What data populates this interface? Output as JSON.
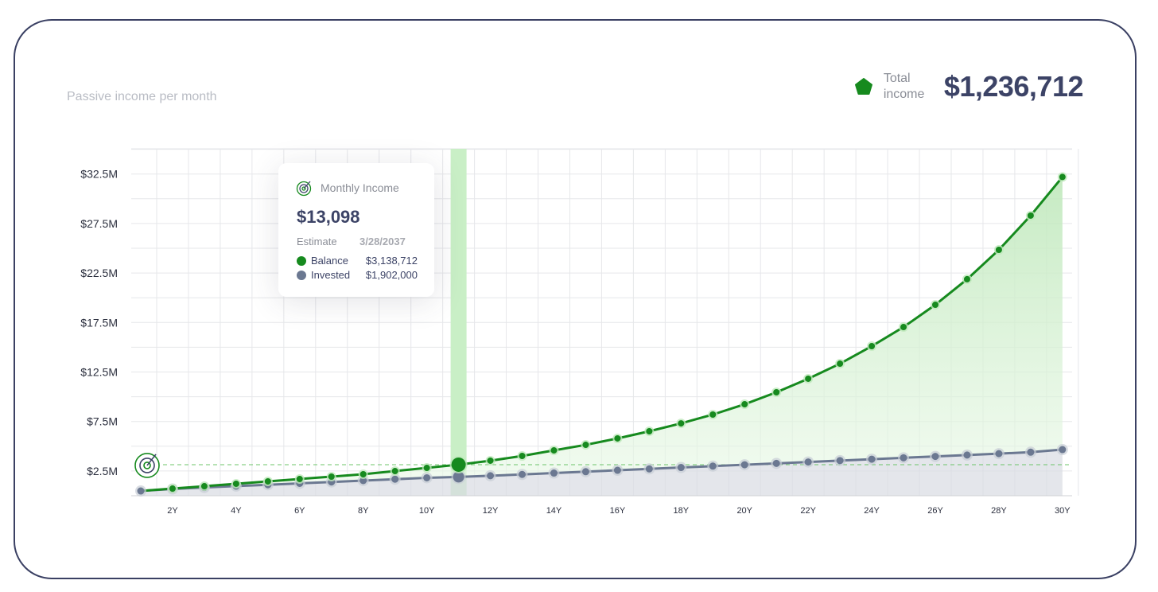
{
  "header": {
    "subtitle": "Passive income per month",
    "total_label_line1": "Total",
    "total_label_line2": "income",
    "total_value": "$1,236,712"
  },
  "tooltip": {
    "title": "Monthly Income",
    "value": "$13,098",
    "estimate_label": "Estimate",
    "estimate_date": "3/28/2037",
    "rows": [
      {
        "label": "Balance",
        "value": "$3,138,712"
      },
      {
        "label": "Invested",
        "value": "$1,902,000"
      }
    ]
  },
  "colors": {
    "balance": "#168a1e",
    "invested": "#6b7891",
    "highlight": "#c9efc6",
    "text": "#3c4366"
  },
  "chart_data": {
    "type": "line",
    "title": "Passive income per month",
    "x": [
      1,
      2,
      3,
      4,
      5,
      6,
      7,
      8,
      9,
      10,
      11,
      12,
      13,
      14,
      15,
      16,
      17,
      18,
      19,
      20,
      21,
      22,
      23,
      24,
      25,
      26,
      27,
      28,
      29,
      30
    ],
    "x_tick_labels": [
      "2Y",
      "4Y",
      "6Y",
      "8Y",
      "10Y",
      "12Y",
      "14Y",
      "16Y",
      "18Y",
      "20Y",
      "22Y",
      "24Y",
      "26Y",
      "28Y",
      "30Y"
    ],
    "y_tick_labels": [
      "$2.5M",
      "$7.5M",
      "$12.5M",
      "$17.5M",
      "$22.5M",
      "$27.5M",
      "$32.5M"
    ],
    "ylim": [
      0,
      35
    ],
    "yunit": "millions USD",
    "highlight_x": 11,
    "target_level": 3.14,
    "series": [
      {
        "name": "Balance",
        "values": [
          0.48,
          0.72,
          0.96,
          1.21,
          1.45,
          1.69,
          1.93,
          2.17,
          2.49,
          2.81,
          3.14,
          3.54,
          4.02,
          4.58,
          5.14,
          5.79,
          6.51,
          7.31,
          8.2,
          9.24,
          10.45,
          11.82,
          13.34,
          15.11,
          17.04,
          19.29,
          21.87,
          24.84,
          28.3,
          32.2
        ]
      },
      {
        "name": "Invested",
        "values": [
          0.48,
          0.68,
          0.83,
          0.97,
          1.11,
          1.25,
          1.39,
          1.53,
          1.67,
          1.81,
          1.9,
          2.02,
          2.15,
          2.29,
          2.43,
          2.57,
          2.71,
          2.85,
          2.99,
          3.13,
          3.27,
          3.41,
          3.55,
          3.69,
          3.83,
          3.97,
          4.11,
          4.25,
          4.4,
          4.66
        ]
      }
    ]
  }
}
